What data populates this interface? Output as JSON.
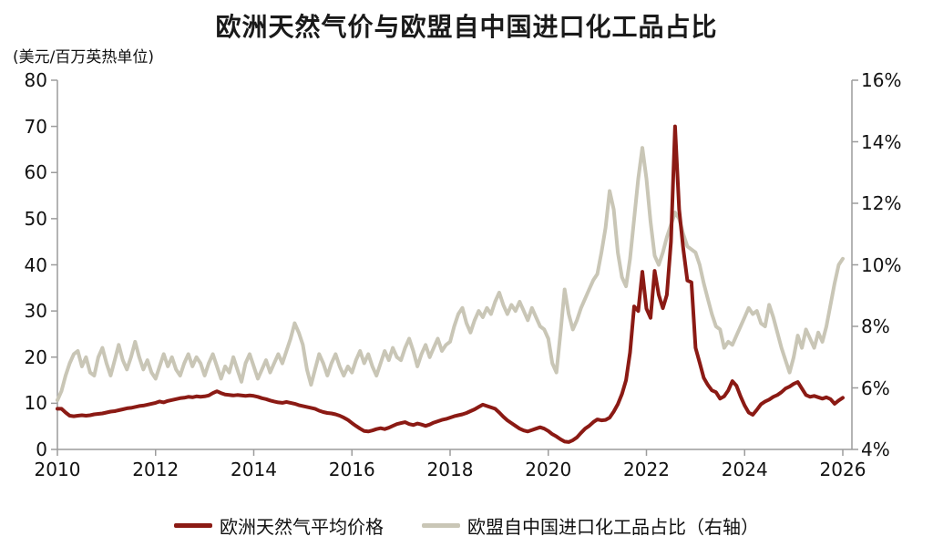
{
  "title": "欧洲天然气价与欧盟自中国进口化工品占比",
  "left_axis_unit": "(美元/百万英热单位)",
  "colors": {
    "gas_price_line": "#8b1a14",
    "import_share_line": "#c9c6b6",
    "axis": "#9c9c9c",
    "text": "#1a1a1a",
    "background": "#ffffff"
  },
  "chart_data": {
    "type": "line",
    "title": "欧洲天然气价与欧盟自中国进口化工品占比",
    "x_axis": {
      "tick_years": [
        2010,
        2012,
        2014,
        2016,
        2018,
        2020,
        2022,
        2024,
        2026
      ],
      "start_year": 2010,
      "end_year": 2026,
      "samples_per_year": 12
    },
    "left_axis": {
      "label": "(美元/百万英热单位)",
      "min": 0,
      "max": 80,
      "ticks": [
        0,
        10,
        20,
        30,
        40,
        50,
        60,
        70,
        80
      ]
    },
    "right_axis": {
      "label": "%",
      "min": 4,
      "max": 16,
      "ticks": [
        4,
        6,
        8,
        10,
        12,
        14,
        16
      ],
      "tick_suffix": "%"
    },
    "grid": false,
    "legend_position": "bottom",
    "series": [
      {
        "name": "欧盟自中国进口化工品占比（右轴）",
        "axis": "right",
        "color": "#c9c6b6",
        "values": [
          5.6,
          5.9,
          6.4,
          6.8,
          7.1,
          7.2,
          6.7,
          7.0,
          6.5,
          6.4,
          7.0,
          7.3,
          6.8,
          6.4,
          6.9,
          7.4,
          6.9,
          6.6,
          7.0,
          7.5,
          7.0,
          6.6,
          6.9,
          6.5,
          6.3,
          6.7,
          7.1,
          6.7,
          7.0,
          6.6,
          6.4,
          6.8,
          7.1,
          6.7,
          7.0,
          6.8,
          6.4,
          6.8,
          7.1,
          6.7,
          6.3,
          6.7,
          6.5,
          7.0,
          6.6,
          6.2,
          6.8,
          7.1,
          6.7,
          6.3,
          6.6,
          6.9,
          6.5,
          6.8,
          7.1,
          6.8,
          7.2,
          7.6,
          8.1,
          7.8,
          7.4,
          6.6,
          6.1,
          6.6,
          7.1,
          6.8,
          6.4,
          6.8,
          7.1,
          6.7,
          6.4,
          6.7,
          6.5,
          6.9,
          7.2,
          6.8,
          7.1,
          6.7,
          6.4,
          6.8,
          7.2,
          6.9,
          7.3,
          7.0,
          6.9,
          7.3,
          7.6,
          7.2,
          6.7,
          7.1,
          7.4,
          7.0,
          7.3,
          7.6,
          7.2,
          7.4,
          7.5,
          8.0,
          8.4,
          8.6,
          8.1,
          7.8,
          8.2,
          8.5,
          8.3,
          8.6,
          8.4,
          8.8,
          9.1,
          8.7,
          8.4,
          8.7,
          8.5,
          8.8,
          8.5,
          8.2,
          8.6,
          8.3,
          8.0,
          7.9,
          7.6,
          6.8,
          6.5,
          7.8,
          9.2,
          8.4,
          7.9,
          8.2,
          8.6,
          8.9,
          9.2,
          9.5,
          9.7,
          10.4,
          11.2,
          12.4,
          11.8,
          10.4,
          9.6,
          9.3,
          10.2,
          11.5,
          12.8,
          13.8,
          12.8,
          11.4,
          10.3,
          10.0,
          10.4,
          10.9,
          11.3,
          11.7,
          11.5,
          11.0,
          10.6,
          10.5,
          10.4,
          10.0,
          9.4,
          8.9,
          8.4,
          8.0,
          7.9,
          7.3,
          7.5,
          7.4,
          7.7,
          8.0,
          8.3,
          8.6,
          8.4,
          8.5,
          8.1,
          8.0,
          8.7,
          8.3,
          7.8,
          7.3,
          6.9,
          6.5,
          7.0,
          7.7,
          7.3,
          7.9,
          7.6,
          7.3,
          7.8,
          7.5,
          8.0,
          8.7,
          9.4,
          10.0,
          10.2
        ]
      },
      {
        "name": "欧洲天然气平均价格",
        "axis": "left",
        "color": "#8b1a14",
        "values": [
          8.8,
          8.8,
          8.0,
          7.3,
          7.2,
          7.3,
          7.4,
          7.3,
          7.4,
          7.6,
          7.7,
          7.8,
          8.0,
          8.2,
          8.3,
          8.5,
          8.7,
          8.9,
          9.0,
          9.2,
          9.4,
          9.5,
          9.7,
          9.9,
          10.1,
          10.4,
          10.2,
          10.5,
          10.7,
          10.9,
          11.1,
          11.2,
          11.4,
          11.3,
          11.5,
          11.4,
          11.5,
          11.7,
          12.2,
          12.6,
          12.2,
          11.9,
          11.8,
          11.7,
          11.8,
          11.7,
          11.6,
          11.7,
          11.6,
          11.4,
          11.1,
          10.9,
          10.6,
          10.4,
          10.2,
          10.1,
          10.3,
          10.1,
          9.9,
          9.6,
          9.4,
          9.2,
          9.0,
          8.8,
          8.4,
          8.1,
          7.9,
          7.8,
          7.6,
          7.3,
          6.9,
          6.4,
          5.7,
          5.1,
          4.5,
          4.0,
          3.9,
          4.1,
          4.4,
          4.6,
          4.4,
          4.7,
          5.1,
          5.5,
          5.7,
          5.9,
          5.5,
          5.3,
          5.6,
          5.4,
          5.1,
          5.4,
          5.8,
          6.1,
          6.4,
          6.6,
          6.9,
          7.2,
          7.4,
          7.6,
          7.9,
          8.3,
          8.7,
          9.2,
          9.7,
          9.4,
          9.1,
          8.8,
          8.0,
          7.1,
          6.3,
          5.7,
          5.1,
          4.5,
          4.1,
          3.9,
          4.2,
          4.5,
          4.8,
          4.5,
          4.0,
          3.3,
          2.8,
          2.2,
          1.7,
          1.6,
          2.0,
          2.6,
          3.6,
          4.5,
          5.1,
          5.9,
          6.5,
          6.3,
          6.4,
          6.9,
          8.2,
          9.8,
          12.0,
          15.0,
          21.0,
          31.0,
          30.0,
          38.5,
          30.5,
          28.5,
          38.7,
          33.5,
          30.6,
          33.5,
          45.0,
          70.0,
          52.0,
          43.5,
          36.6,
          36.2,
          22.0,
          18.8,
          15.5,
          14.0,
          12.8,
          12.4,
          11.0,
          11.5,
          12.8,
          14.8,
          13.8,
          11.5,
          9.5,
          8.0,
          7.5,
          8.6,
          9.8,
          10.4,
          10.8,
          11.4,
          11.8,
          12.4,
          13.2,
          13.6,
          14.2,
          14.6,
          13.2,
          11.8,
          11.4,
          11.6,
          11.3,
          11.0,
          11.3,
          10.9,
          9.9,
          10.6,
          11.2
        ]
      }
    ]
  },
  "legend": {
    "gas_price_label": "欧洲天然气平均价格",
    "import_share_label": "欧盟自中国进口化工品占比（右轴）"
  }
}
